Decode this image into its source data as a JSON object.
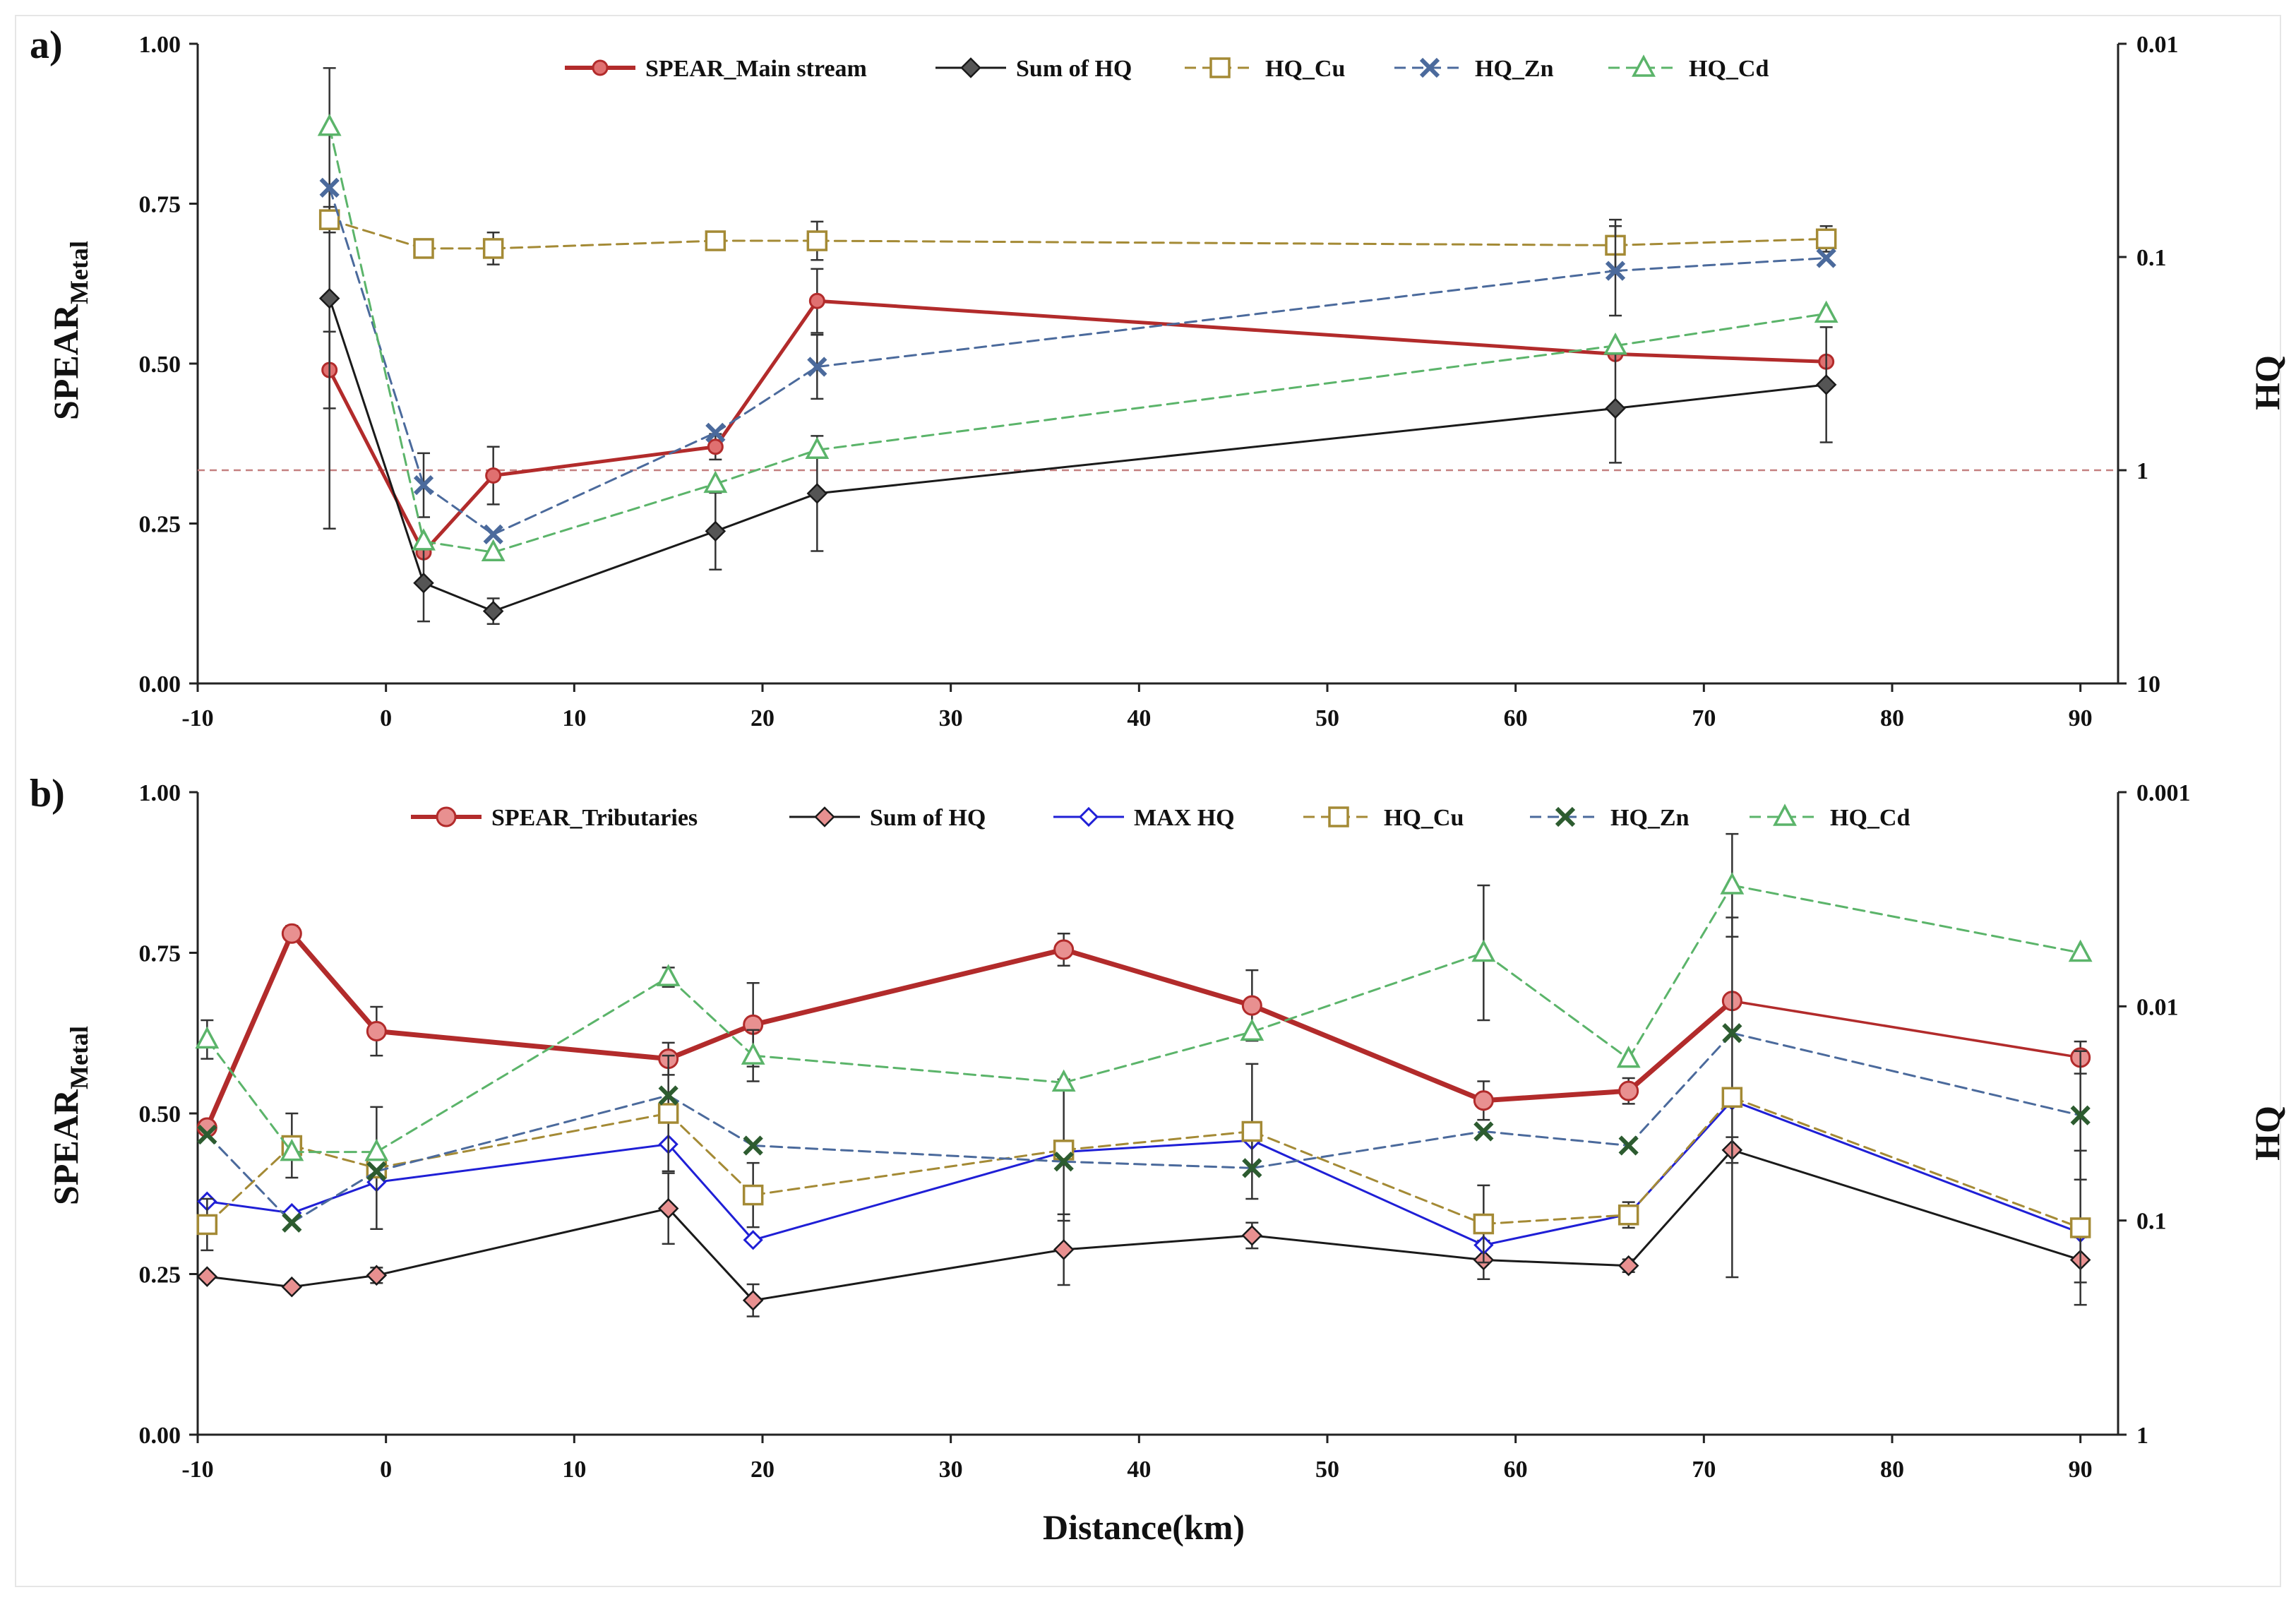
{
  "figure": {
    "x_axis_title": "Distance(km)"
  },
  "chart_data": [
    {
      "type": "line",
      "panel_label": "a)",
      "ylabel_main": "SPEAR",
      "ylabel_sub": "Metal",
      "y2label": "HQ",
      "xlim": [
        -10,
        92
      ],
      "xticks": [
        "-10",
        "0",
        "10",
        "20",
        "30",
        "40",
        "50",
        "60",
        "70",
        "80",
        "90"
      ],
      "ylim": [
        0,
        1
      ],
      "yticks": [
        "0.00",
        "0.25",
        "0.50",
        "0.75",
        "1.00"
      ],
      "y2_scale": "log, reversed (0.01 at top, 10 at bottom)",
      "y2ticks": [
        {
          "label": "0.01",
          "value": 0.01
        },
        {
          "label": "0.1",
          "value": 0.1
        },
        {
          "label": "1",
          "value": 1
        },
        {
          "label": "10",
          "value": 10
        }
      ],
      "reference_line": {
        "hq": 1,
        "color": "#c48080"
      },
      "series": [
        {
          "name": "SPEAR_Main stream",
          "color": "#b22b2b",
          "marker": "circle",
          "dash": false,
          "width": 5,
          "x": [
            -3,
            2,
            5.7,
            17.5,
            22.9,
            65.3,
            76.5
          ],
          "y": [
            0.49,
            0.205,
            0.325,
            0.37,
            0.598,
            0.515,
            0.503
          ],
          "err": [
            0.06,
            0,
            0.045,
            0.02,
            0.05,
            0,
            0
          ]
        },
        {
          "name": "Sum of HQ",
          "color": "#1a1a1a",
          "marker": "diamond",
          "fill": "#555555",
          "dash": false,
          "width": 3,
          "x": [
            -3,
            2,
            5.7,
            17.5,
            22.9,
            65.3,
            76.5
          ],
          "y": [
            0.602,
            0.157,
            0.113,
            0.238,
            0.297,
            0.43,
            0.467
          ],
          "err": [
            0.36,
            0.06,
            0.02,
            0.06,
            0.09,
            0.085,
            0.09
          ]
        },
        {
          "name": "HQ_Cu",
          "color": "#a48a35",
          "marker": "square",
          "dash": true,
          "width": 3,
          "x": [
            -3,
            2,
            5.7,
            17.5,
            22.9,
            65.3,
            76.5
          ],
          "y": [
            0.725,
            0.68,
            0.68,
            0.692,
            0.692,
            0.685,
            0.695
          ],
          "err": [
            0.02,
            0.01,
            0.025,
            0.01,
            0.03,
            0.04,
            0.02
          ]
        },
        {
          "name": "HQ_Zn",
          "color": "#4b6a9c",
          "marker": "x",
          "dash": true,
          "width": 3,
          "x": [
            -3,
            2,
            5.7,
            17.5,
            22.9,
            65.3,
            76.5
          ],
          "y": [
            0.775,
            0.31,
            0.233,
            0.392,
            0.495,
            0.645,
            0.665
          ],
          "err": [
            0,
            0.05,
            0,
            0,
            0.05,
            0.07,
            0
          ]
        },
        {
          "name": "HQ_Cd",
          "color": "#5bb46a",
          "marker": "triangle",
          "dash": true,
          "width": 3,
          "x": [
            -3,
            2,
            5.7,
            17.5,
            22.9,
            65.3,
            76.5
          ],
          "y": [
            0.87,
            0.222,
            0.205,
            0.312,
            0.365,
            0.528,
            0.578
          ],
          "err": [
            0,
            0,
            0,
            0,
            0,
            0,
            0
          ]
        }
      ]
    },
    {
      "type": "line",
      "panel_label": "b)",
      "ylabel_main": "SPEAR",
      "ylabel_sub": "Metal",
      "y2label": "HQ",
      "xlim": [
        -10,
        92
      ],
      "xticks": [
        "-10",
        "0",
        "10",
        "20",
        "30",
        "40",
        "50",
        "60",
        "70",
        "80",
        "90"
      ],
      "ylim": [
        0,
        1
      ],
      "yticks": [
        "0.00",
        "0.25",
        "0.50",
        "0.75",
        "1.00"
      ],
      "y2_scale": "log, reversed (0.001 at top, 1 at bottom)",
      "y2ticks": [
        {
          "label": "0.001",
          "value": 0.001
        },
        {
          "label": "0.01",
          "value": 0.01
        },
        {
          "label": "0.1",
          "value": 0.1
        },
        {
          "label": "1",
          "value": 1
        }
      ],
      "series": [
        {
          "name": "SPEAR_Tributaries",
          "color": "#b22b2b",
          "marker": "circle-big",
          "fill": "#e89090",
          "dash": false,
          "width": 7,
          "x": [
            -9.5,
            -5,
            -0.5,
            15,
            19.5,
            36,
            46,
            58.3,
            66,
            71.5,
            90
          ],
          "y": [
            0.478,
            0.78,
            0.628,
            0.585,
            0.638,
            0.755,
            0.668,
            0.52,
            0.535,
            0.675,
            0.587
          ],
          "err": [
            0,
            0.012,
            0.038,
            0.025,
            0.065,
            0.025,
            0.055,
            0.03,
            0.02,
            0,
            0.025
          ],
          "width_segments": [
            7,
            7,
            7,
            7,
            7,
            7,
            7,
            7,
            7,
            3.5
          ]
        },
        {
          "name": "Sum of HQ",
          "color": "#1a1a1a",
          "marker": "diamond",
          "fill": "#e89090",
          "dash": false,
          "width": 3,
          "x": [
            -9.5,
            -5,
            -0.5,
            15,
            19.5,
            36,
            46,
            58.3,
            66,
            71.5,
            90
          ],
          "y": [
            0.246,
            0.23,
            0.248,
            0.352,
            0.209,
            0.288,
            0.31,
            0.272,
            0.263,
            0.443,
            0.272
          ],
          "err": [
            0,
            0,
            0.012,
            0.055,
            0.025,
            0.055,
            0.02,
            0.03,
            0.01,
            0.02,
            0.035
          ]
        },
        {
          "name": "MAX HQ",
          "color": "#1f1fd6",
          "marker": "diamond-open",
          "dash": false,
          "width": 3,
          "x": [
            -9.5,
            -5,
            -0.5,
            15,
            19.5,
            36,
            46,
            58.3,
            66,
            71.5,
            90
          ],
          "y": [
            0.363,
            0.345,
            0.393,
            0.452,
            0.303,
            0.44,
            0.458,
            0.295,
            0.343,
            0.52,
            0.314
          ],
          "err": [
            0,
            0,
            0,
            0,
            0,
            0,
            0,
            0,
            0,
            0,
            0
          ]
        },
        {
          "name": "HQ_Cu",
          "color": "#a48a35",
          "marker": "square",
          "dash": true,
          "width": 3,
          "x": [
            -9.5,
            -5,
            -0.5,
            15,
            19.5,
            36,
            46,
            58.3,
            66,
            71.5,
            90
          ],
          "y": [
            0.327,
            0.45,
            0.415,
            0.5,
            0.373,
            0.443,
            0.472,
            0.328,
            0.342,
            0.525,
            0.322
          ],
          "err": [
            0.04,
            0.05,
            0.095,
            0.09,
            0.05,
            0.11,
            0.105,
            0.06,
            0.02,
            0.28,
            0.12
          ]
        },
        {
          "name": "HQ_Zn",
          "color": "#2d5c30",
          "marker": "x",
          "line_color": "#4b6a9c",
          "dash": true,
          "width": 3,
          "x": [
            -9.5,
            -5,
            -0.5,
            15,
            19.5,
            36,
            46,
            58.3,
            66,
            71.5,
            90
          ],
          "y": [
            0.467,
            0.33,
            0.41,
            0.528,
            0.45,
            0.425,
            0.415,
            0.472,
            0.45,
            0.625,
            0.497
          ],
          "err": [
            0,
            0,
            0,
            0,
            0,
            0,
            0,
            0,
            0,
            0,
            0.1
          ]
        },
        {
          "name": "HQ_Cd",
          "color": "#5bb46a",
          "marker": "triangle",
          "dash": true,
          "width": 3,
          "x": [
            -9.5,
            -5,
            -0.5,
            15,
            19.5,
            36,
            46,
            58.3,
            66,
            71.5,
            90
          ],
          "y": [
            0.615,
            0.44,
            0.44,
            0.712,
            0.59,
            0.548,
            0.627,
            0.75,
            0.585,
            0.855,
            0.75
          ],
          "err": [
            0.03,
            0,
            0,
            0.015,
            0.04,
            0,
            0,
            0.105,
            0,
            0.08,
            0
          ]
        }
      ]
    }
  ]
}
